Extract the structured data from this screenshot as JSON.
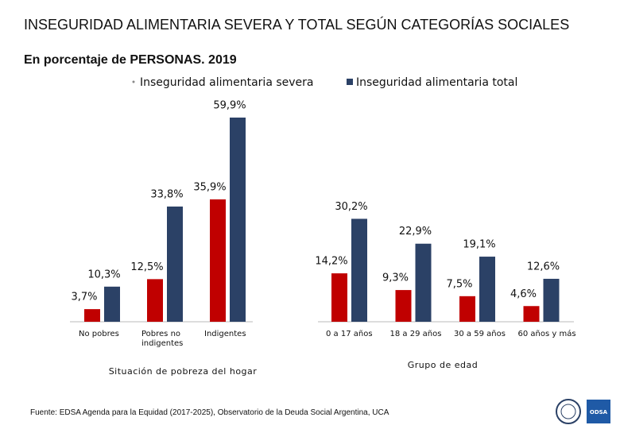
{
  "chart_data": {
    "type": "bar",
    "title": "INSEGURIDAD ALIMENTARIA SEVERA Y TOTAL SEGÚN CATEGORÍAS SOCIALES",
    "subtitle": "En porcentaje de PERSONAS. 2019",
    "category_groups": [
      {
        "name": "Situación de pobreza del hogar",
        "categories": [
          "No pobres",
          "Pobres no indigentes",
          "Indigentes"
        ]
      },
      {
        "name": "Grupo de edad",
        "categories": [
          "0 a 17 años",
          "18 a 29 años",
          "30 a 59 años",
          "60 años y más"
        ]
      }
    ],
    "series": [
      {
        "name": "Inseguridad alimentaria severa",
        "color": "#c00000",
        "values": [
          3.7,
          12.5,
          35.9,
          14.2,
          9.3,
          7.5,
          4.6
        ],
        "value_labels": [
          "3,7%",
          "12,5%",
          "35,9%",
          "14,2%",
          "9,3%",
          "7,5%",
          "4,6%"
        ]
      },
      {
        "name": "Inseguridad alimentaria total",
        "color": "#2b4166",
        "values": [
          10.3,
          33.8,
          59.9,
          30.2,
          22.9,
          19.1,
          12.6
        ],
        "value_labels": [
          "10,3%",
          "33,8%",
          "59,9%",
          "30,2%",
          "22,9%",
          "19,1%",
          "12,6%"
        ]
      }
    ],
    "source": "Fuente: EDSA Agenda para la Equidad (2017-2025), Observatorio de la Deuda Social Argentina, UCA",
    "logo_label": "ODSA"
  }
}
